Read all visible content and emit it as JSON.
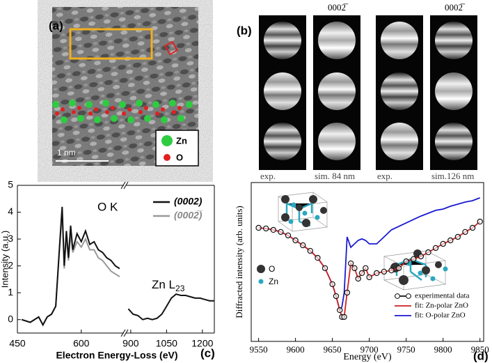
{
  "panel_a": {
    "label": "(a)",
    "legend": [
      "Zn",
      "O"
    ],
    "scale_bar": "1 nm"
  },
  "panel_b": {
    "label": "(b)",
    "headers": [
      "0002̅",
      "0002̅"
    ],
    "captions": [
      "exp.",
      "sim. 84 nm",
      "exp.",
      "sim.126 nm"
    ]
  },
  "chart_data": [
    {
      "type": "line",
      "label": "(c)",
      "x_label": "Electron Energy-Loss (eV)",
      "y_label": "Intensity (a.u.)",
      "edge_labels": [
        {
          "name": "O K"
        },
        {
          "name": "Zn L",
          "subscript": "23"
        }
      ],
      "x": [
        460,
        480,
        500,
        510,
        520,
        530,
        540,
        548,
        555,
        560,
        565,
        570,
        575,
        580,
        590,
        600,
        610,
        620,
        630,
        640,
        650,
        660,
        670,
        680,
        690,
        890,
        910,
        930,
        950,
        970,
        990,
        1010,
        1030,
        1050,
        1070,
        1090,
        1110,
        1130,
        1150,
        1170,
        1190,
        1210,
        1230,
        1250
      ],
      "x_segments": [
        {
          "xlim": [
            450,
            700
          ],
          "xticks": [
            450,
            600
          ]
        },
        {
          "xlim": [
            880,
            1250
          ],
          "xticks": [
            900,
            1050,
            1200
          ]
        }
      ],
      "ylim": [
        -0.5,
        5
      ],
      "yticks": [
        0,
        1,
        2,
        3,
        4,
        5
      ],
      "series": [
        {
          "name": "(0002)",
          "color": "#111111",
          "values": [
            0.0,
            -0.1,
            0.1,
            -0.2,
            0.1,
            0.2,
            0.5,
            2.5,
            4.2,
            2.0,
            3.3,
            2.3,
            3.5,
            2.6,
            3.2,
            2.9,
            3.3,
            2.8,
            2.9,
            2.6,
            2.5,
            2.3,
            2.2,
            2.0,
            1.9,
            0.4,
            0.2,
            0.15,
            0.0,
            0.05,
            0.0,
            0.05,
            0.2,
            0.5,
            0.8,
            0.95,
            0.9,
            0.9,
            0.85,
            0.8,
            0.8,
            0.75,
            0.7,
            0.7
          ]
        },
        {
          "name": "(0002̅)",
          "color": "#999999",
          "values": [
            0.0,
            -0.1,
            0.1,
            -0.2,
            0.1,
            0.2,
            0.5,
            2.4,
            4.0,
            1.9,
            3.1,
            2.2,
            3.2,
            2.5,
            2.9,
            2.7,
            3.0,
            2.6,
            2.6,
            2.3,
            2.2,
            2.0,
            1.8,
            1.7,
            1.6,
            null,
            null,
            null,
            null,
            null,
            null,
            null,
            null,
            null,
            null,
            null,
            null,
            null,
            null,
            null,
            null,
            null,
            null,
            null
          ]
        }
      ]
    },
    {
      "type": "line",
      "label": "(d)",
      "x_label": "Energy (eV)",
      "y_label": "Diffracted intensity (arb. units)",
      "inset_labels": [
        "O",
        "Zn"
      ],
      "x": [
        9550,
        9560,
        9570,
        9580,
        9590,
        9600,
        9610,
        9620,
        9630,
        9640,
        9650,
        9655,
        9660,
        9663,
        9666,
        9670,
        9675,
        9680,
        9685,
        9690,
        9695,
        9700,
        9710,
        9720,
        9730,
        9740,
        9750,
        9760,
        9770,
        9780,
        9790,
        9800,
        9810,
        9820,
        9830,
        9840,
        9850
      ],
      "xlim": [
        9540,
        9855
      ],
      "xticks": [
        9550,
        9600,
        9650,
        9700,
        9750,
        9800,
        9850
      ],
      "ylim": [
        0,
        10
      ],
      "series": [
        {
          "name": "experimental data",
          "color": "#111111",
          "marker": "open-circle",
          "values": [
            7.15,
            7.11,
            7.02,
            6.89,
            6.67,
            6.36,
            6.05,
            5.7,
            5.26,
            4.61,
            3.6,
            2.85,
            1.97,
            1.54,
            1.54,
            3.07,
            4.91,
            4.61,
            3.95,
            4.3,
            4.61,
            4.04,
            4.3,
            4.39,
            4.47,
            4.61,
            5.04,
            5.18,
            5.35,
            5.61,
            5.88,
            6.14,
            6.36,
            6.58,
            6.89,
            7.15,
            7.54
          ]
        },
        {
          "name": "fit: Zn-polar ZnO",
          "color": "#d02020",
          "values": [
            7.15,
            7.11,
            7.02,
            6.89,
            6.67,
            6.36,
            6.05,
            5.7,
            5.26,
            4.61,
            3.6,
            2.85,
            1.97,
            1.54,
            1.54,
            3.07,
            4.91,
            4.61,
            3.95,
            4.3,
            4.61,
            4.04,
            4.3,
            4.39,
            4.47,
            4.61,
            5.04,
            5.18,
            5.35,
            5.61,
            5.88,
            6.14,
            6.36,
            6.58,
            6.89,
            7.15,
            7.54
          ]
        },
        {
          "name": "fit: O-polar ZnO",
          "color": "#1a1ad0",
          "values": [
            7.15,
            7.11,
            7.02,
            6.89,
            6.67,
            6.36,
            6.05,
            5.7,
            5.26,
            4.61,
            3.6,
            2.85,
            1.97,
            2.19,
            3.07,
            6.58,
            5.92,
            6.14,
            6.36,
            6.45,
            6.36,
            6.14,
            6.14,
            6.58,
            7.02,
            7.24,
            7.46,
            7.68,
            7.89,
            8.07,
            8.25,
            8.33,
            8.51,
            8.64,
            8.77,
            8.86,
            9.04
          ]
        }
      ]
    }
  ]
}
